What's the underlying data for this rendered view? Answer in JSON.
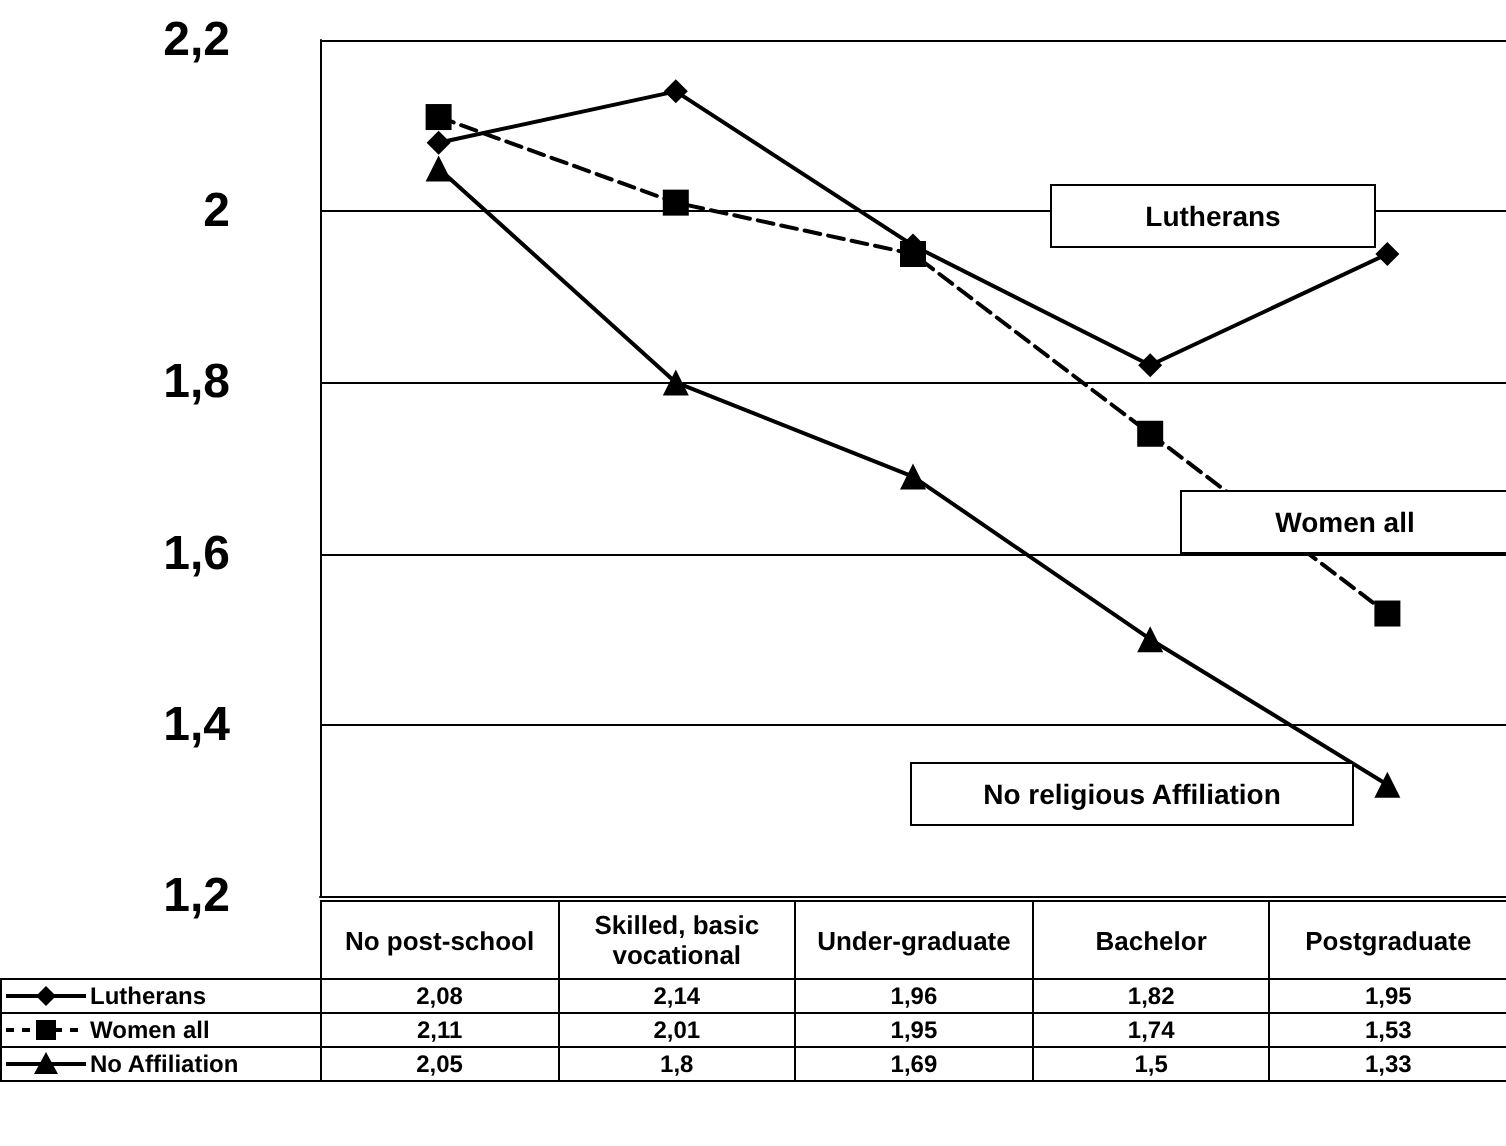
{
  "chart_data": {
    "type": "line",
    "categories": [
      "No post-school",
      "Skilled, basic vocational",
      "Under-graduate",
      "Bachelor",
      "Postgraduate"
    ],
    "series": [
      {
        "name": "Lutherans",
        "color": "#000000",
        "marker": "diamond",
        "line_style": "solid",
        "values": [
          2.08,
          2.14,
          1.96,
          1.82,
          1.95
        ],
        "value_labels": [
          "2,08",
          "2,14",
          "1,96",
          "1,82",
          "1,95"
        ]
      },
      {
        "name": "Women all",
        "color": "#000000",
        "marker": "square",
        "line_style": "dashed",
        "values": [
          2.11,
          2.01,
          1.95,
          1.74,
          1.53
        ],
        "value_labels": [
          "2,11",
          "2,01",
          "1,95",
          "1,74",
          "1,53"
        ]
      },
      {
        "name": "No Affiliation",
        "color": "#000000",
        "marker": "triangle",
        "line_style": "solid",
        "values": [
          2.05,
          1.8,
          1.69,
          1.5,
          1.33
        ],
        "value_labels": [
          "2,05",
          "1,8",
          "1,69",
          "1,5",
          "1,33"
        ]
      }
    ],
    "ylim": [
      1.2,
      2.2
    ],
    "yticks": [
      {
        "value": 1.2,
        "label": "1,2"
      },
      {
        "value": 1.4,
        "label": "1,4"
      },
      {
        "value": 1.6,
        "label": "1,6"
      },
      {
        "value": 1.8,
        "label": "1,8"
      },
      2,
      {
        "value": 2.2,
        "label": "2,2"
      }
    ],
    "grid": "y",
    "legend": "bottom",
    "annotations": [
      "Lutherans",
      "Women all",
      "No religious Affiliation"
    ]
  }
}
